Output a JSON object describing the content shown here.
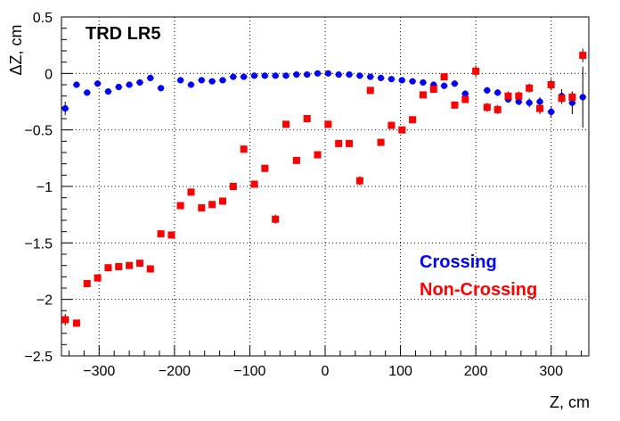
{
  "chart_data": {
    "type": "scatter",
    "title": "TRD LR5",
    "xlabel": "Z, cm",
    "ylabel": "ΔZ, cm",
    "xlim": [
      -350,
      350
    ],
    "ylim": [
      -2.5,
      0.5
    ],
    "x_ticks": [
      -300,
      -200,
      -100,
      0,
      100,
      200,
      300
    ],
    "x_tick_labels": [
      "−300",
      "−200",
      "−100",
      "0",
      "100",
      "200",
      "300"
    ],
    "y_ticks": [
      -2.5,
      -2,
      -1.5,
      -1,
      -0.5,
      0,
      0.5
    ],
    "y_tick_labels": [
      "−2.5",
      "−2",
      "−1.5",
      "−1",
      "−0.5",
      "0",
      "0.5"
    ],
    "grid": true,
    "legend": "bottom-right, text only",
    "series": [
      {
        "name": "Crossing",
        "color": "#0000ff",
        "marker": "circle",
        "points": [
          {
            "x": -345,
            "y": -0.31,
            "err": 0.06
          },
          {
            "x": -330,
            "y": -0.1,
            "err": 0.02
          },
          {
            "x": -316,
            "y": -0.17,
            "err": 0.02
          },
          {
            "x": -302,
            "y": -0.09,
            "err": 0.02
          },
          {
            "x": -288,
            "y": -0.16,
            "err": 0.02
          },
          {
            "x": -274,
            "y": -0.12,
            "err": 0.02
          },
          {
            "x": -260,
            "y": -0.1,
            "err": 0.02
          },
          {
            "x": -246,
            "y": -0.08,
            "err": 0.02
          },
          {
            "x": -232,
            "y": -0.04,
            "err": 0.02
          },
          {
            "x": -218,
            "y": -0.13,
            "err": 0.02
          },
          {
            "x": -192,
            "y": -0.06,
            "err": 0.02
          },
          {
            "x": -178,
            "y": -0.1,
            "err": 0.02
          },
          {
            "x": -164,
            "y": -0.06,
            "err": 0.02
          },
          {
            "x": -150,
            "y": -0.07,
            "err": 0.02
          },
          {
            "x": -136,
            "y": -0.06,
            "err": 0.02
          },
          {
            "x": -122,
            "y": -0.03,
            "err": 0.02
          },
          {
            "x": -108,
            "y": -0.03,
            "err": 0.02
          },
          {
            "x": -94,
            "y": -0.02,
            "err": 0.02
          },
          {
            "x": -80,
            "y": -0.02,
            "err": 0.02
          },
          {
            "x": -66,
            "y": -0.02,
            "err": 0.02
          },
          {
            "x": -52,
            "y": -0.02,
            "err": 0.02
          },
          {
            "x": -38,
            "y": -0.01,
            "err": 0.02
          },
          {
            "x": -24,
            "y": -0.01,
            "err": 0.02
          },
          {
            "x": -10,
            "y": 0.0,
            "err": 0.02
          },
          {
            "x": 4,
            "y": 0.0,
            "err": 0.02
          },
          {
            "x": 18,
            "y": -0.01,
            "err": 0.02
          },
          {
            "x": 32,
            "y": -0.01,
            "err": 0.02
          },
          {
            "x": 46,
            "y": -0.02,
            "err": 0.02
          },
          {
            "x": 60,
            "y": -0.03,
            "err": 0.02
          },
          {
            "x": 74,
            "y": -0.04,
            "err": 0.02
          },
          {
            "x": 88,
            "y": -0.05,
            "err": 0.02
          },
          {
            "x": 102,
            "y": -0.06,
            "err": 0.02
          },
          {
            "x": 116,
            "y": -0.07,
            "err": 0.02
          },
          {
            "x": 130,
            "y": -0.08,
            "err": 0.02
          },
          {
            "x": 144,
            "y": -0.1,
            "err": 0.02
          },
          {
            "x": 158,
            "y": -0.11,
            "err": 0.02
          },
          {
            "x": 172,
            "y": -0.09,
            "err": 0.02
          },
          {
            "x": 186,
            "y": -0.18,
            "err": 0.03
          },
          {
            "x": 215,
            "y": -0.15,
            "err": 0.03
          },
          {
            "x": 229,
            "y": -0.17,
            "err": 0.03
          },
          {
            "x": 243,
            "y": -0.23,
            "err": 0.03
          },
          {
            "x": 257,
            "y": -0.25,
            "err": 0.03
          },
          {
            "x": 271,
            "y": -0.26,
            "err": 0.04
          },
          {
            "x": 285,
            "y": -0.25,
            "err": 0.04
          },
          {
            "x": 300,
            "y": -0.34,
            "err": 0.05
          },
          {
            "x": 314,
            "y": -0.2,
            "err": 0.06
          },
          {
            "x": 328,
            "y": -0.26,
            "err": 0.1
          },
          {
            "x": 342,
            "y": -0.21,
            "err": 0.27
          }
        ]
      },
      {
        "name": "Non-Crossing",
        "color": "#ff0000",
        "marker": "square",
        "points": [
          {
            "x": -345,
            "y": -2.18,
            "err": 0.05
          },
          {
            "x": -330,
            "y": -2.21,
            "err": 0.03
          },
          {
            "x": -316,
            "y": -1.86,
            "err": 0.03
          },
          {
            "x": -302,
            "y": -1.81,
            "err": 0.03
          },
          {
            "x": -288,
            "y": -1.72,
            "err": 0.03
          },
          {
            "x": -274,
            "y": -1.71,
            "err": 0.03
          },
          {
            "x": -260,
            "y": -1.7,
            "err": 0.03
          },
          {
            "x": -246,
            "y": -1.68,
            "err": 0.03
          },
          {
            "x": -232,
            "y": -1.73,
            "err": 0.03
          },
          {
            "x": -218,
            "y": -1.42,
            "err": 0.03
          },
          {
            "x": -204,
            "y": -1.43,
            "err": 0.03
          },
          {
            "x": -192,
            "y": -1.17,
            "err": 0.03
          },
          {
            "x": -178,
            "y": -1.05,
            "err": 0.03
          },
          {
            "x": -164,
            "y": -1.19,
            "err": 0.03
          },
          {
            "x": -150,
            "y": -1.16,
            "err": 0.03
          },
          {
            "x": -136,
            "y": -1.13,
            "err": 0.03
          },
          {
            "x": -122,
            "y": -1.0,
            "err": 0.03
          },
          {
            "x": -108,
            "y": -0.67,
            "err": 0.03
          },
          {
            "x": -94,
            "y": -0.98,
            "err": 0.03
          },
          {
            "x": -80,
            "y": -0.84,
            "err": 0.03
          },
          {
            "x": -66,
            "y": -1.29,
            "err": 0.04
          },
          {
            "x": -52,
            "y": -0.45,
            "err": 0.03
          },
          {
            "x": -38,
            "y": -0.77,
            "err": 0.03
          },
          {
            "x": -24,
            "y": -0.4,
            "err": 0.03
          },
          {
            "x": -10,
            "y": -0.72,
            "err": 0.03
          },
          {
            "x": 4,
            "y": -0.45,
            "err": 0.03
          },
          {
            "x": 18,
            "y": -0.62,
            "err": 0.03
          },
          {
            "x": 32,
            "y": -0.62,
            "err": 0.03
          },
          {
            "x": 46,
            "y": -0.95,
            "err": 0.04
          },
          {
            "x": 60,
            "y": -0.15,
            "err": 0.03
          },
          {
            "x": 74,
            "y": -0.61,
            "err": 0.03
          },
          {
            "x": 88,
            "y": -0.46,
            "err": 0.03
          },
          {
            "x": 102,
            "y": -0.5,
            "err": 0.03
          },
          {
            "x": 116,
            "y": -0.41,
            "err": 0.03
          },
          {
            "x": 130,
            "y": -0.19,
            "err": 0.03
          },
          {
            "x": 144,
            "y": -0.14,
            "err": 0.03
          },
          {
            "x": 158,
            "y": -0.03,
            "err": 0.03
          },
          {
            "x": 172,
            "y": -0.28,
            "err": 0.03
          },
          {
            "x": 186,
            "y": -0.23,
            "err": 0.03
          },
          {
            "x": 200,
            "y": 0.02,
            "err": 0.05
          },
          {
            "x": 215,
            "y": -0.3,
            "err": 0.04
          },
          {
            "x": 229,
            "y": -0.32,
            "err": 0.04
          },
          {
            "x": 243,
            "y": -0.2,
            "err": 0.04
          },
          {
            "x": 257,
            "y": -0.2,
            "err": 0.04
          },
          {
            "x": 271,
            "y": -0.13,
            "err": 0.04
          },
          {
            "x": 285,
            "y": -0.31,
            "err": 0.05
          },
          {
            "x": 300,
            "y": -0.1,
            "err": 0.05
          },
          {
            "x": 314,
            "y": -0.22,
            "err": 0.05
          },
          {
            "x": 328,
            "y": -0.21,
            "err": 0.05
          },
          {
            "x": 342,
            "y": 0.16,
            "err": 0.06
          }
        ]
      }
    ]
  }
}
